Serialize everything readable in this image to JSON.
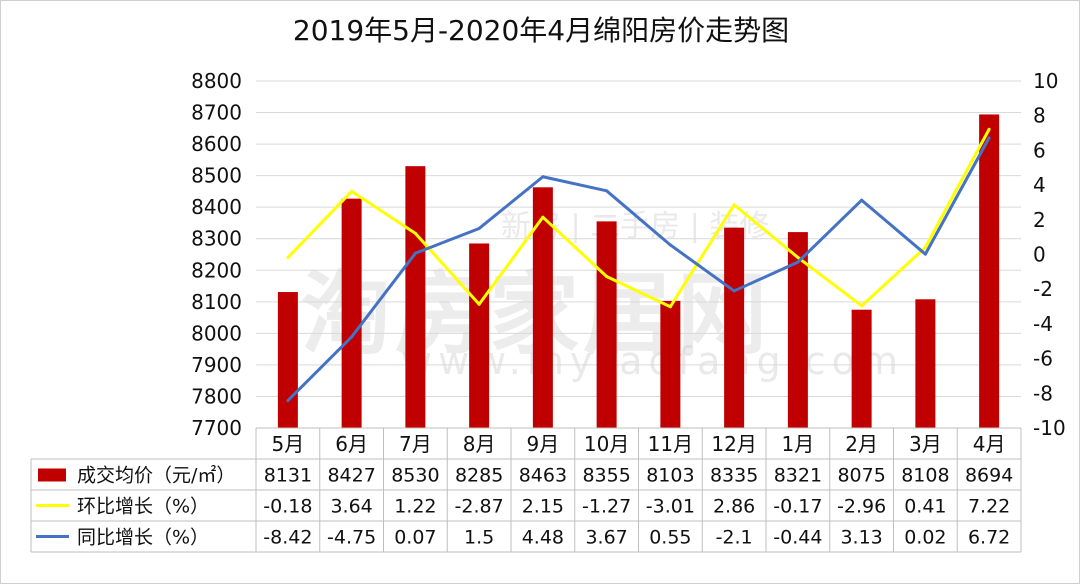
{
  "chart_data": {
    "type": "bar",
    "title": "2019年5月-2020年4月绵阳房价走势图",
    "categories": [
      "5月",
      "6月",
      "7月",
      "8月",
      "9月",
      "10月",
      "11月",
      "12月",
      "1月",
      "2月",
      "3月",
      "4月"
    ],
    "y_left": {
      "min": 7700,
      "max": 8800,
      "ticks": [
        7700,
        7800,
        7900,
        8000,
        8100,
        8200,
        8300,
        8400,
        8500,
        8600,
        8700,
        8800
      ]
    },
    "y_right": {
      "min": -10,
      "max": 10,
      "ticks": [
        -10,
        -8,
        -6,
        -4,
        -2,
        0,
        2,
        4,
        6,
        8,
        10
      ]
    },
    "grid": true,
    "series": [
      {
        "name": "成交均价（元/㎡）",
        "type": "bar",
        "axis": "left",
        "color": "#c00000",
        "values": [
          8131,
          8427,
          8530,
          8285,
          8463,
          8355,
          8103,
          8335,
          8321,
          8075,
          8108,
          8694
        ]
      },
      {
        "name": "环比增长（%）",
        "type": "line",
        "axis": "right",
        "color": "#ffff00",
        "values": [
          -0.18,
          3.64,
          1.22,
          -2.87,
          2.15,
          -1.27,
          -3.01,
          2.86,
          -0.17,
          -2.96,
          0.41,
          7.22
        ]
      },
      {
        "name": "同比增长（%）",
        "type": "line",
        "axis": "right",
        "color": "#4472c4",
        "values": [
          -8.42,
          -4.75,
          0.07,
          1.5,
          4.48,
          3.67,
          0.55,
          -2.1,
          -0.44,
          3.13,
          0.02,
          6.72
        ]
      }
    ]
  },
  "watermark": {
    "brand": "淘房家居网",
    "tagline": "新房 | 二手房 | 装修",
    "url": "www.mytaofang.com"
  }
}
